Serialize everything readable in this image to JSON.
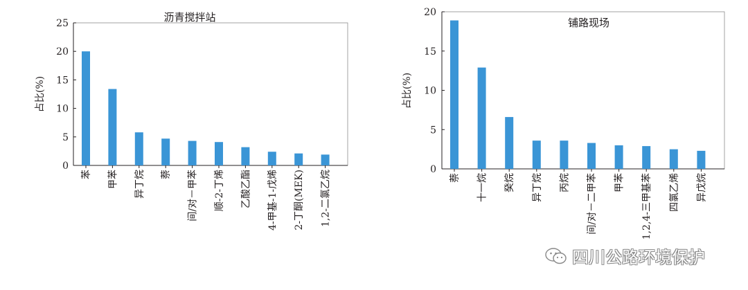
{
  "chart_data": [
    {
      "type": "bar",
      "title": "沥青搅拌站",
      "ylabel": "占比(%)",
      "xlabel": "",
      "ylim": [
        0,
        25
      ],
      "yticks": [
        0,
        5,
        10,
        15,
        20,
        25
      ],
      "grid": false,
      "bar_color": "#3a95d6",
      "categories": [
        "苯",
        "甲苯",
        "异丁烷",
        "萘",
        "间/对－甲苯",
        "顺-2-丁烯",
        "乙酸乙酯",
        "4-甲基-1-戊烯",
        "2-丁酮(MEK)",
        "1,2-二氯乙烷"
      ],
      "values": [
        20.0,
        13.4,
        5.8,
        4.7,
        4.3,
        4.1,
        3.2,
        2.4,
        2.1,
        1.9
      ]
    },
    {
      "type": "bar",
      "title": "铺路现场",
      "ylabel": "占比(%)",
      "xlabel": "",
      "ylim": [
        0,
        20
      ],
      "yticks": [
        0,
        5,
        10,
        15,
        20
      ],
      "grid": false,
      "bar_color": "#3a95d6",
      "categories": [
        "萘",
        "十一烷",
        "癸烷",
        "异丁烷",
        "丙烷",
        "间/对－二甲苯",
        "甲苯",
        "1,2,4-三甲基苯",
        "四氯乙烯",
        "异戊烷"
      ],
      "values": [
        18.9,
        12.9,
        6.6,
        3.6,
        3.6,
        3.3,
        3.0,
        2.9,
        2.5,
        2.3
      ]
    }
  ],
  "watermark": {
    "text": "四川公路环境保护",
    "icon": "wechat-icon"
  }
}
